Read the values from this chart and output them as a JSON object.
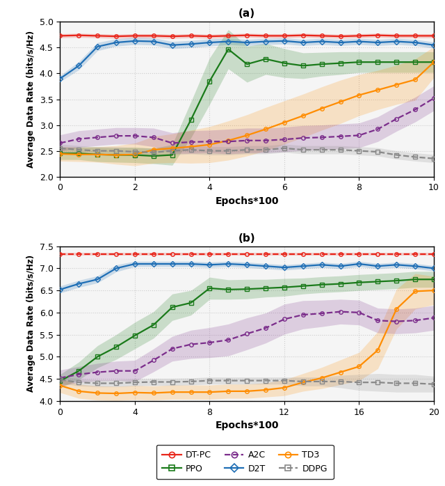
{
  "title_a": "(a)",
  "title_b": "(b)",
  "xlabel": "Epochs*100",
  "ylabel": "Average Data Rate (bits/s/Hz)",
  "colors": {
    "DT-PC": "#e8251a",
    "D2T": "#1e6eb5",
    "PPO": "#1a7a1a",
    "TD3": "#ff8c00",
    "A2C": "#7b2d8b",
    "DDPG": "#888888"
  },
  "plot_a": {
    "xlim": [
      0,
      10
    ],
    "ylim": [
      2.0,
      5.0
    ],
    "xticks": [
      0,
      2,
      4,
      6,
      8,
      10
    ],
    "yticks": [
      2.0,
      2.5,
      3.0,
      3.5,
      4.0,
      4.5,
      5.0
    ],
    "x": [
      0,
      0.5,
      1.0,
      1.5,
      2.0,
      2.5,
      3.0,
      3.5,
      4.0,
      4.5,
      5.0,
      5.5,
      6.0,
      6.5,
      7.0,
      7.5,
      8.0,
      8.5,
      9.0,
      9.5,
      10.0
    ],
    "DT-PC": {
      "y": [
        4.73,
        4.74,
        4.73,
        4.72,
        4.73,
        4.73,
        4.72,
        4.73,
        4.72,
        4.73,
        4.74,
        4.73,
        4.73,
        4.74,
        4.73,
        4.72,
        4.73,
        4.74,
        4.73,
        4.73,
        4.73
      ],
      "std": [
        0.04,
        0.04,
        0.04,
        0.04,
        0.04,
        0.04,
        0.04,
        0.04,
        0.04,
        0.04,
        0.04,
        0.04,
        0.04,
        0.04,
        0.04,
        0.04,
        0.04,
        0.04,
        0.04,
        0.04,
        0.04
      ],
      "dashed": false,
      "marker": "o",
      "mfc": "none"
    },
    "D2T": {
      "y": [
        3.9,
        4.15,
        4.52,
        4.6,
        4.63,
        4.62,
        4.55,
        4.57,
        4.6,
        4.62,
        4.6,
        4.62,
        4.63,
        4.6,
        4.62,
        4.6,
        4.62,
        4.6,
        4.62,
        4.6,
        4.55
      ],
      "std": [
        0.06,
        0.08,
        0.08,
        0.07,
        0.07,
        0.07,
        0.07,
        0.07,
        0.07,
        0.06,
        0.06,
        0.06,
        0.06,
        0.06,
        0.06,
        0.06,
        0.06,
        0.06,
        0.06,
        0.06,
        0.06
      ],
      "dashed": false,
      "marker": "D",
      "mfc": "none"
    },
    "PPO": {
      "y": [
        2.45,
        2.45,
        2.43,
        2.42,
        2.42,
        2.4,
        2.42,
        3.1,
        3.85,
        4.47,
        4.18,
        4.28,
        4.2,
        4.15,
        4.18,
        4.2,
        4.22,
        4.22,
        4.22,
        4.22,
        4.22
      ],
      "std": [
        0.12,
        0.12,
        0.14,
        0.14,
        0.15,
        0.15,
        0.2,
        0.35,
        0.45,
        0.38,
        0.35,
        0.3,
        0.28,
        0.25,
        0.23,
        0.22,
        0.2,
        0.2,
        0.2,
        0.2,
        0.2
      ],
      "dashed": false,
      "marker": "s",
      "mfc": "none"
    },
    "TD3": {
      "y": [
        2.44,
        2.43,
        2.43,
        2.42,
        2.43,
        2.52,
        2.55,
        2.58,
        2.62,
        2.7,
        2.8,
        2.92,
        3.05,
        3.18,
        3.32,
        3.45,
        3.58,
        3.68,
        3.78,
        3.88,
        4.22
      ],
      "std": [
        0.14,
        0.14,
        0.15,
        0.18,
        0.22,
        0.26,
        0.28,
        0.32,
        0.35,
        0.38,
        0.4,
        0.42,
        0.42,
        0.42,
        0.42,
        0.42,
        0.4,
        0.38,
        0.38,
        0.4,
        0.3
      ],
      "dashed": false,
      "marker": "o",
      "mfc": "none"
    },
    "A2C": {
      "y": [
        2.65,
        2.73,
        2.76,
        2.79,
        2.79,
        2.76,
        2.65,
        2.67,
        2.68,
        2.68,
        2.7,
        2.7,
        2.72,
        2.75,
        2.76,
        2.78,
        2.8,
        2.92,
        3.12,
        3.3,
        3.52
      ],
      "std": [
        0.16,
        0.16,
        0.16,
        0.16,
        0.16,
        0.18,
        0.2,
        0.22,
        0.22,
        0.24,
        0.24,
        0.24,
        0.24,
        0.24,
        0.24,
        0.24,
        0.24,
        0.24,
        0.24,
        0.24,
        0.24
      ],
      "dashed": true,
      "marker": "o",
      "mfc": "none"
    },
    "DDPG": {
      "y": [
        2.55,
        2.52,
        2.5,
        2.5,
        2.48,
        2.47,
        2.5,
        2.52,
        2.5,
        2.5,
        2.52,
        2.52,
        2.55,
        2.52,
        2.52,
        2.52,
        2.5,
        2.48,
        2.42,
        2.38,
        2.35
      ],
      "std": [
        0.08,
        0.08,
        0.08,
        0.08,
        0.08,
        0.08,
        0.08,
        0.08,
        0.08,
        0.08,
        0.08,
        0.08,
        0.08,
        0.08,
        0.08,
        0.08,
        0.08,
        0.08,
        0.08,
        0.08,
        0.08
      ],
      "dashed": true,
      "marker": "s",
      "mfc": "none"
    }
  },
  "plot_b": {
    "xlim": [
      0,
      20
    ],
    "ylim": [
      4.0,
      7.5
    ],
    "xticks": [
      0,
      4,
      8,
      12,
      16,
      20
    ],
    "yticks": [
      4.0,
      4.5,
      5.0,
      5.5,
      6.0,
      6.5,
      7.0,
      7.5
    ],
    "x": [
      0,
      1,
      2,
      3,
      4,
      5,
      6,
      7,
      8,
      9,
      10,
      11,
      12,
      13,
      14,
      15,
      16,
      17,
      18,
      19,
      20
    ],
    "DT-PC": {
      "y": [
        7.32,
        7.32,
        7.32,
        7.32,
        7.32,
        7.32,
        7.32,
        7.32,
        7.32,
        7.32,
        7.32,
        7.32,
        7.32,
        7.32,
        7.32,
        7.32,
        7.32,
        7.32,
        7.32,
        7.32,
        7.32
      ],
      "std": [
        0.03,
        0.03,
        0.03,
        0.03,
        0.03,
        0.03,
        0.03,
        0.03,
        0.03,
        0.03,
        0.03,
        0.03,
        0.03,
        0.03,
        0.03,
        0.03,
        0.03,
        0.03,
        0.03,
        0.03,
        0.03
      ],
      "dashed": true,
      "marker": "o",
      "mfc": "none"
    },
    "D2T": {
      "y": [
        6.52,
        6.65,
        6.75,
        7.0,
        7.1,
        7.1,
        7.1,
        7.1,
        7.08,
        7.1,
        7.08,
        7.05,
        7.02,
        7.05,
        7.08,
        7.05,
        7.1,
        7.05,
        7.08,
        7.05,
        7.0
      ],
      "std": [
        0.08,
        0.08,
        0.08,
        0.08,
        0.06,
        0.06,
        0.06,
        0.06,
        0.06,
        0.06,
        0.06,
        0.06,
        0.06,
        0.06,
        0.06,
        0.06,
        0.06,
        0.06,
        0.06,
        0.06,
        0.06
      ],
      "dashed": false,
      "marker": "D",
      "mfc": "none"
    },
    "PPO": {
      "y": [
        4.45,
        4.68,
        5.0,
        5.22,
        5.48,
        5.72,
        6.12,
        6.22,
        6.55,
        6.52,
        6.53,
        6.55,
        6.57,
        6.6,
        6.63,
        6.65,
        6.68,
        6.7,
        6.72,
        6.75,
        6.75
      ],
      "std": [
        0.15,
        0.2,
        0.25,
        0.28,
        0.3,
        0.3,
        0.3,
        0.28,
        0.25,
        0.22,
        0.22,
        0.2,
        0.2,
        0.18,
        0.18,
        0.18,
        0.18,
        0.18,
        0.18,
        0.18,
        0.18
      ],
      "dashed": false,
      "marker": "s",
      "mfc": "none"
    },
    "TD3": {
      "y": [
        4.35,
        4.22,
        4.18,
        4.17,
        4.19,
        4.18,
        4.2,
        4.2,
        4.2,
        4.22,
        4.22,
        4.25,
        4.3,
        4.42,
        4.52,
        4.65,
        4.78,
        5.15,
        6.08,
        6.48,
        6.5
      ],
      "std": [
        0.16,
        0.16,
        0.16,
        0.16,
        0.16,
        0.16,
        0.16,
        0.16,
        0.16,
        0.16,
        0.16,
        0.16,
        0.18,
        0.2,
        0.24,
        0.28,
        0.32,
        0.42,
        0.45,
        0.4,
        0.32
      ],
      "dashed": false,
      "marker": "o",
      "mfc": "none"
    },
    "A2C": {
      "y": [
        4.52,
        4.6,
        4.65,
        4.68,
        4.68,
        4.92,
        5.18,
        5.28,
        5.32,
        5.38,
        5.52,
        5.65,
        5.85,
        5.95,
        5.98,
        6.02,
        6.0,
        5.82,
        5.8,
        5.82,
        5.88
      ],
      "std": [
        0.18,
        0.18,
        0.2,
        0.22,
        0.24,
        0.26,
        0.28,
        0.32,
        0.34,
        0.36,
        0.36,
        0.34,
        0.34,
        0.32,
        0.3,
        0.28,
        0.28,
        0.28,
        0.28,
        0.28,
        0.28
      ],
      "dashed": true,
      "marker": "o",
      "mfc": "none"
    },
    "DDPG": {
      "y": [
        4.48,
        4.42,
        4.4,
        4.4,
        4.42,
        4.43,
        4.43,
        4.44,
        4.46,
        4.46,
        4.46,
        4.46,
        4.46,
        4.44,
        4.44,
        4.44,
        4.42,
        4.42,
        4.4,
        4.4,
        4.38
      ],
      "std": [
        0.08,
        0.08,
        0.08,
        0.08,
        0.08,
        0.08,
        0.08,
        0.08,
        0.08,
        0.08,
        0.08,
        0.08,
        0.08,
        0.1,
        0.1,
        0.14,
        0.18,
        0.2,
        0.2,
        0.2,
        0.18
      ],
      "dashed": true,
      "marker": "s",
      "mfc": "none"
    }
  },
  "series_order": [
    "DT-PC",
    "D2T",
    "PPO",
    "TD3",
    "A2C",
    "DDPG"
  ],
  "marker_size": 4,
  "linewidth": 1.6,
  "alpha_fill": 0.2,
  "grid_color": "#cccccc",
  "bg_color": "#f5f5f5"
}
